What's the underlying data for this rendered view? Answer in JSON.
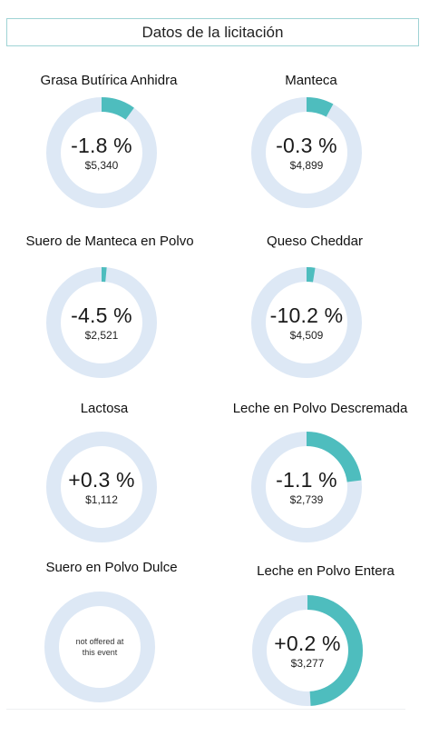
{
  "header": {
    "title": "Datos de la licitación"
  },
  "colors": {
    "track": "#dde8f5",
    "accent": "#4ebdbe",
    "border": "#9fd3d5"
  },
  "products": [
    {
      "name": "Grasa Butírica Anhidra",
      "change": "-1.8 %",
      "price": "$5,340",
      "fill": 0.1
    },
    {
      "name": "Manteca",
      "change": "-0.3 %",
      "price": "$4,899",
      "fill": 0.08
    },
    {
      "name": "Suero de Manteca en Polvo",
      "change": "-4.5 %",
      "price": "$2,521",
      "fill": 0.015
    },
    {
      "name": "Queso Cheddar",
      "change": "-10.2 %",
      "price": "$4,509",
      "fill": 0.025
    },
    {
      "name": "Lactosa",
      "change": "+0.3 %",
      "price": "$1,112",
      "fill": 0.0
    },
    {
      "name": "Leche en Polvo Descremada",
      "change": "-1.1 %",
      "price": "$2,739",
      "fill": 0.23
    },
    {
      "name": "Suero en Polvo Dulce",
      "change": "",
      "price": "",
      "fill": 0.0,
      "not_offered": "not offered at this event"
    },
    {
      "name": "Leche en Polvo Entera",
      "change": "+0.2 %",
      "price": "$3,277",
      "fill": 0.49
    }
  ]
}
